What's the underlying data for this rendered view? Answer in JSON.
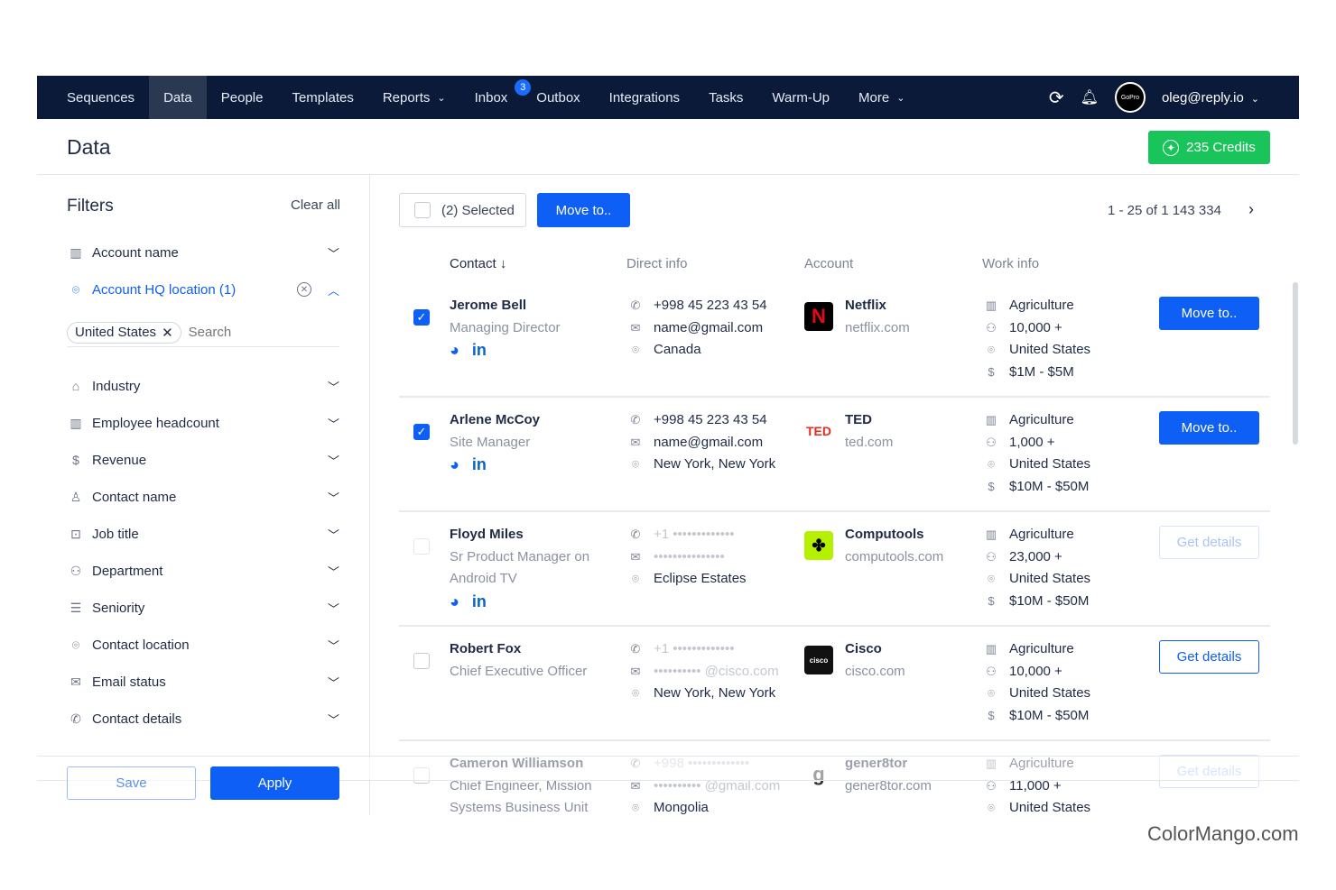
{
  "nav": {
    "items": [
      {
        "label": "Sequences"
      },
      {
        "label": "Data",
        "active": true
      },
      {
        "label": "People"
      },
      {
        "label": "Templates"
      },
      {
        "label": "Reports",
        "dropdown": true
      },
      {
        "label": "Inbox",
        "badge": "3"
      },
      {
        "label": "Outbox"
      },
      {
        "label": "Integrations"
      },
      {
        "label": "Tasks"
      },
      {
        "label": "Warm-Up"
      },
      {
        "label": "More",
        "dropdown": true
      }
    ],
    "user": "oleg@reply.io",
    "avatar_text": "GoPro"
  },
  "page": {
    "title": "Data",
    "credits": "235 Credits"
  },
  "filters": {
    "title": "Filters",
    "clear_all": "Clear all",
    "items": [
      {
        "label": "Account name",
        "icon": "building-icon"
      },
      {
        "label": "Account HQ location (1)",
        "icon": "pin-icon",
        "active": true
      },
      {
        "label": "Industry",
        "icon": "factory-icon"
      },
      {
        "label": "Employee headcount",
        "icon": "headcount-icon"
      },
      {
        "label": "Revenue",
        "icon": "dollar-icon"
      },
      {
        "label": "Contact name",
        "icon": "person-icon"
      },
      {
        "label": "Job title",
        "icon": "briefcase-icon"
      },
      {
        "label": "Department",
        "icon": "department-icon"
      },
      {
        "label": "Seniority",
        "icon": "seniority-icon"
      },
      {
        "label": "Contact location",
        "icon": "pin-icon"
      },
      {
        "label": "Email status",
        "icon": "mail-icon"
      },
      {
        "label": "Contact details",
        "icon": "phone-icon"
      }
    ],
    "chip": "United States",
    "search_placeholder": "Search",
    "save": "Save",
    "apply": "Apply"
  },
  "toolbar": {
    "selected": "(2) Selected",
    "move_to": "Move to..",
    "pagination": "1 - 25 of 1 143 334"
  },
  "columns": {
    "contact": "Contact",
    "direct": "Direct info",
    "account": "Account",
    "work": "Work info"
  },
  "rows": [
    {
      "name": "Jerome Bell",
      "title": [
        "Managing Director"
      ],
      "checked": true,
      "social": true,
      "phone": "+998 45 223 43 54",
      "email": "name@gmail.com",
      "location": "Canada",
      "account": "Netflix",
      "domain": "netflix.com",
      "logo": "N",
      "industry": "Agriculture",
      "headcount": "10,000 +",
      "country": "United States",
      "revenue": "$1M - $5M",
      "action": "Move to..",
      "action_type": "primary",
      "masked": false
    },
    {
      "name": "Arlene McCoy",
      "title": [
        "Site Manager"
      ],
      "checked": true,
      "social": true,
      "phone": "+998 45 223 43 54",
      "email": "name@gmail.com",
      "location": "New York, New York",
      "account": "TED",
      "domain": "ted.com",
      "logo": "TED",
      "industry": "Agriculture",
      "headcount": "1,000 +",
      "country": "United States",
      "revenue": "$10M - $50M",
      "action": "Move to..",
      "action_type": "primary",
      "masked": false
    },
    {
      "name": "Floyd Miles",
      "title": [
        "Sr Product Manager on",
        "Android TV"
      ],
      "checked": false,
      "disabled": true,
      "social": true,
      "phone": "+1 •••••••••••••",
      "email": "•••••••••••••••",
      "location": "Eclipse Estates",
      "account": "Computools",
      "domain": "computools.com",
      "logo": "✤",
      "industry": "Agriculture",
      "headcount": "23,000 +",
      "country": "United States",
      "revenue": "$10M - $50M",
      "action": "Get details",
      "action_type": "faded",
      "masked": true
    },
    {
      "name": "Robert Fox",
      "title": [
        "Chief Executive Officer"
      ],
      "checked": false,
      "social": false,
      "phone": "+1 •••••••••••••",
      "email": "•••••••••• @cisco.com",
      "location": "New York, New York",
      "account": "Cisco",
      "domain": "cisco.com",
      "logo": "cisco",
      "industry": "Agriculture",
      "headcount": "10,000 +",
      "country": "United States",
      "revenue": "$10M - $50M",
      "action": "Get details",
      "action_type": "outline",
      "masked": true
    },
    {
      "name": "Cameron Williamson",
      "title": [
        "Chief Engineer, Mission",
        "Systems Business Unit"
      ],
      "checked": false,
      "social": false,
      "phone": "+998 •••••••••••••",
      "email": "•••••••••• @gmail.com",
      "location": "Mongolia",
      "account": "gener8tor",
      "domain": "gener8tor.com",
      "logo": "g",
      "industry": "Agriculture",
      "headcount": "11,000 +",
      "country": "United States",
      "revenue": "",
      "action": "Get details",
      "action_type": "faded",
      "masked": true
    }
  ],
  "watermark": "ColorMango.com",
  "colors": {
    "nav": "#0b1a38",
    "primary": "#0d5ff5",
    "credits": "#19c45a"
  }
}
